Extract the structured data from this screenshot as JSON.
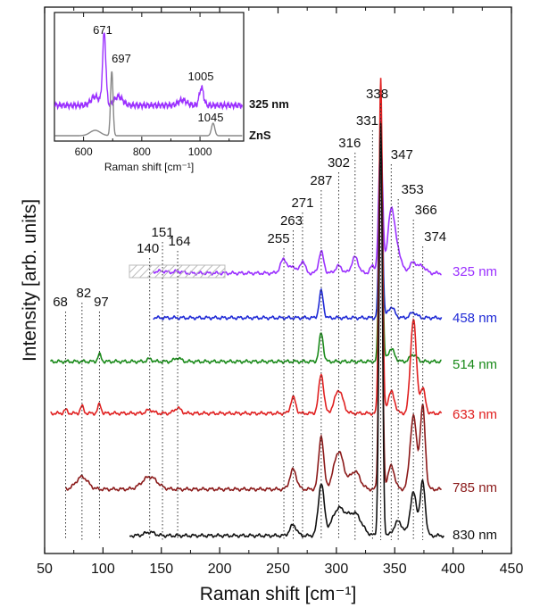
{
  "chart_data": {
    "type": "line",
    "xlabel": "Raman shift [cm⁻¹]",
    "ylabel": "Intensity [arb. units]",
    "xlim": [
      50,
      450
    ],
    "x_ticks": [
      50,
      100,
      150,
      200,
      250,
      300,
      350,
      400,
      450
    ],
    "y_ticks_shown": false,
    "grid": false,
    "series": [
      {
        "name": "325 nm",
        "color": "#9b30ff"
      },
      {
        "name": "458 nm",
        "color": "#1f2ad6"
      },
      {
        "name": "514 nm",
        "color": "#1a8a1a"
      },
      {
        "name": "633 nm",
        "color": "#e02020"
      },
      {
        "name": "785 nm",
        "color": "#8b1a1a"
      },
      {
        "name": "830 nm",
        "color": "#111111"
      }
    ],
    "peak_labels": [
      {
        "text": "68",
        "x": 68
      },
      {
        "text": "82",
        "x": 82
      },
      {
        "text": "97",
        "x": 97
      },
      {
        "text": "140",
        "x": 140
      },
      {
        "text": "151",
        "x": 151
      },
      {
        "text": "164",
        "x": 164
      },
      {
        "text": "255",
        "x": 255
      },
      {
        "text": "263",
        "x": 263
      },
      {
        "text": "271",
        "x": 271
      },
      {
        "text": "287",
        "x": 287
      },
      {
        "text": "302",
        "x": 302
      },
      {
        "text": "316",
        "x": 316
      },
      {
        "text": "331",
        "x": 331
      },
      {
        "text": "338",
        "x": 338
      },
      {
        "text": "347",
        "x": 347
      },
      {
        "text": "353",
        "x": 353
      },
      {
        "text": "366",
        "x": 366
      },
      {
        "text": "374",
        "x": 374
      }
    ],
    "inset": {
      "xlabel": "Raman shift [cm⁻¹]",
      "xlim": [
        500,
        1150
      ],
      "x_ticks": [
        600,
        800,
        1000
      ],
      "series": [
        {
          "name": "325 nm",
          "color": "#9b30ff"
        },
        {
          "name": "ZnS",
          "color": "#888888"
        }
      ],
      "peak_labels": [
        {
          "text": "671",
          "x": 671
        },
        {
          "text": "697",
          "x": 697
        },
        {
          "text": "1005",
          "x": 1005
        },
        {
          "text": "1045",
          "x": 1045
        }
      ]
    }
  }
}
